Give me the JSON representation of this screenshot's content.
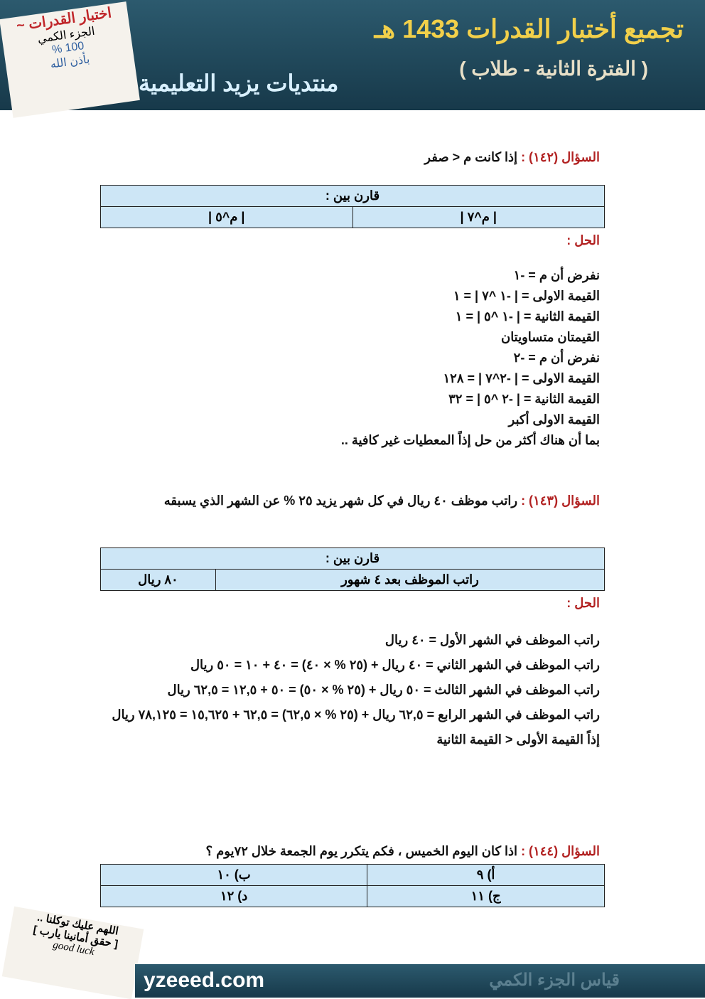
{
  "header": {
    "title": "تجميع أختبار القدرات 1433 هـ",
    "subtitle": "( الفترة الثانية - طلاب )",
    "forum": "منتديات يزيد التعليمية",
    "note": [
      "اختبار القدرات ~",
      "الجزء الكمي",
      "100 %",
      "بأذن الله"
    ]
  },
  "questions": [
    {
      "label": "السؤال (١٤٢) :",
      "text": "إذا كانت م < صفر",
      "table": {
        "header": "قارن بين :",
        "cells": [
          "| م^٧ |",
          "| م^٥ |"
        ]
      },
      "solution_label": "الحل :",
      "solution": [
        "نفرض أن م = -١",
        "القيمة الاولى = | -١ ^٧ | = ١",
        "القيمة الثانية = | -١ ^٥ | = ١",
        "القيمتان متساويتان",
        "نفرض أن م = -٢",
        "القيمة الاولى = | -٢^٧ | = ١٢٨",
        "القيمة الثانية = | -٢ ^٥ | = ٣٢",
        "القيمة الاولى أكبر",
        "بما أن هناك أكثر من حل إذاً المعطيات غير كافية .."
      ]
    },
    {
      "label": "السؤال (١٤٣) :",
      "text": "راتب موظف ٤٠ ريال في كل شهر يزيد ٢٥ % عن الشهر الذي يسبقه",
      "table": {
        "header": "قارن بين :",
        "cells": [
          "راتب الموظف بعد ٤ شهور",
          "٨٠ ريال"
        ]
      },
      "solution_label": "الحل :",
      "solution": [
        "راتب الموظف في الشهر الأول = ٤٠ ريال",
        "راتب الموظف في الشهر الثاني = ٤٠ ريال + (٢٥ % × ٤٠) = ٤٠ + ١٠ = ٥٠ ريال",
        "راتب الموظف في الشهر الثالث = ٥٠ ريال + (٢٥ % × ٥٠) = ٥٠ + ١٢,٥ = ٦٢,٥ ريال",
        "راتب الموظف في الشهر الرابع = ٦٢,٥ ريال + (٢٥ % × ٦٢,٥) = ٦٢,٥ + ١٥,٦٢٥ = ٧٨,١٢٥ ريال",
        "إذاً القيمة الأولى < القيمة الثانية"
      ]
    },
    {
      "label": "السؤال (١٤٤) :",
      "text": "اذا كان اليوم الخميس ، فكم يتكرر يوم الجمعة خلال ٧٢يوم ؟",
      "options": [
        "أ) ٩",
        "ب) ١٠",
        "ج) ١١",
        "د) ١٢"
      ]
    }
  ],
  "footer": {
    "site": "yzeeed.com",
    "slogan": "قياس الجزء الكمي",
    "note": [
      "اللهم عليك توكلنا ..",
      "[ حقق أمانينا يارب ]",
      "good luck"
    ]
  }
}
